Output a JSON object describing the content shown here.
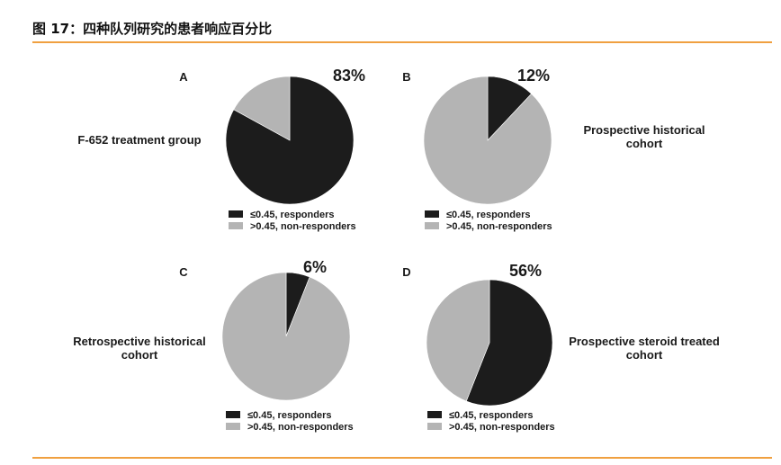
{
  "figure": {
    "title": "图 17：四种队列研究的患者响应百分比"
  },
  "colors": {
    "responders": "#1c1c1c",
    "non_responders": "#b4b4b4",
    "rule": "#f0a040"
  },
  "chart_data": [
    {
      "type": "pie",
      "panel": "A",
      "label_lines": [
        "F-652 treatment group"
      ],
      "percent_label": "83%",
      "categories": [
        "≤0.45, responders",
        ">0.45, non-responders"
      ],
      "values": [
        83,
        17
      ]
    },
    {
      "type": "pie",
      "panel": "B",
      "label_lines": [
        "Prospective historical",
        "cohort"
      ],
      "percent_label": "12%",
      "categories": [
        "≤0.45, responders",
        ">0.45, non-responders"
      ],
      "values": [
        12,
        88
      ]
    },
    {
      "type": "pie",
      "panel": "C",
      "label_lines": [
        "Retrospective historical",
        "cohort"
      ],
      "percent_label": "6%",
      "categories": [
        "≤0.45, responders",
        ">0.45, non-responders"
      ],
      "values": [
        6,
        94
      ]
    },
    {
      "type": "pie",
      "panel": "D",
      "label_lines": [
        "Prospective steroid treated",
        "cohort"
      ],
      "percent_label": "56%",
      "categories": [
        "≤0.45, responders",
        ">0.45, non-responders"
      ],
      "values": [
        56,
        44
      ]
    }
  ]
}
